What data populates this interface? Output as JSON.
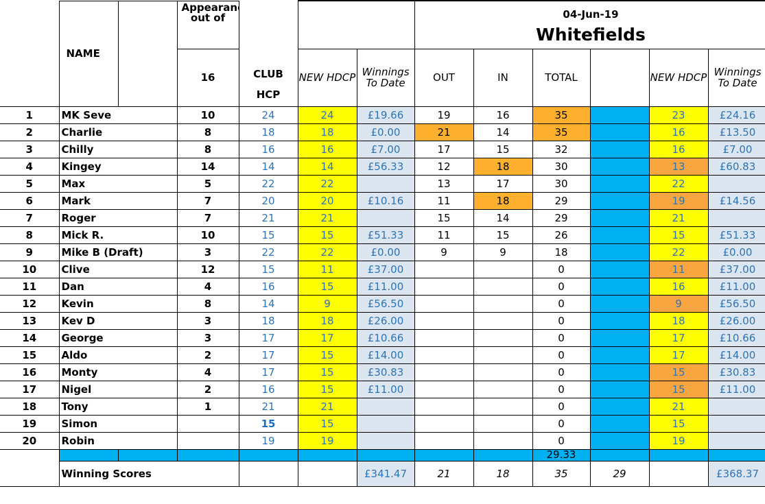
{
  "header": {
    "name_label": "NAME",
    "appearances_label": "Appearances out of",
    "appearances_total": "16",
    "club_hcp_line1": "CLUB",
    "club_hcp_line2": "HCP",
    "new_hdcp_label": "NEW HDCP",
    "winnings_label": "Winnings To Date",
    "out_label": "OUT",
    "in_label": "IN",
    "total_label": "TOTAL",
    "new_hdcp_label2": "NEW HDCP",
    "winnings_label2": "Winnings To Date",
    "event_date": "04-Jun-19",
    "event_course": "Whitefields"
  },
  "rows": [
    {
      "rank": "1",
      "name": "MK Seve",
      "apps": "10",
      "club_hcp": "24",
      "new_hdcp": "24",
      "winnings": "£19.66",
      "out": "19",
      "in": "16",
      "total": "35",
      "new_hdcp2": "23",
      "winnings2": "£24.16"
    },
    {
      "rank": "2",
      "name": "Charlie",
      "apps": "8",
      "club_hcp": "18",
      "new_hdcp": "18",
      "winnings": "£0.00",
      "out": "21",
      "in": "14",
      "total": "35",
      "new_hdcp2": "16",
      "winnings2": "£13.50"
    },
    {
      "rank": "3",
      "name": "Chilly",
      "apps": "8",
      "club_hcp": "16",
      "new_hdcp": "16",
      "winnings": "£7.00",
      "out": "17",
      "in": "15",
      "total": "32",
      "new_hdcp2": "16",
      "winnings2": "£7.00"
    },
    {
      "rank": "4",
      "name": "Kingey",
      "apps": "14",
      "club_hcp": "14",
      "new_hdcp": "14",
      "winnings": "£56.33",
      "out": "12",
      "in": "18",
      "total": "30",
      "new_hdcp2": "13",
      "winnings2": "£60.83"
    },
    {
      "rank": "5",
      "name": "Max",
      "apps": "5",
      "club_hcp": "22",
      "new_hdcp": "22",
      "winnings": "",
      "out": "13",
      "in": "17",
      "total": "30",
      "new_hdcp2": "22",
      "winnings2": ""
    },
    {
      "rank": "6",
      "name": "Mark",
      "apps": "7",
      "club_hcp": "20",
      "new_hdcp": "20",
      "winnings": "£10.16",
      "out": "11",
      "in": "18",
      "total": "29",
      "new_hdcp2": "19",
      "winnings2": "£14.56"
    },
    {
      "rank": "7",
      "name": "Roger",
      "apps": "7",
      "club_hcp": "21",
      "new_hdcp": "21",
      "winnings": "",
      "out": "15",
      "in": "14",
      "total": "29",
      "new_hdcp2": "21",
      "winnings2": ""
    },
    {
      "rank": "8",
      "name": "Mick R.",
      "apps": "10",
      "club_hcp": "15",
      "new_hdcp": "15",
      "winnings": "£51.33",
      "out": "11",
      "in": "15",
      "total": "26",
      "new_hdcp2": "15",
      "winnings2": "£51.33"
    },
    {
      "rank": "9",
      "name": "Mike B (Draft)",
      "apps": "3",
      "club_hcp": "22",
      "new_hdcp": "22",
      "winnings": "£0.00",
      "out": "9",
      "in": "9",
      "total": "18",
      "new_hdcp2": "22",
      "winnings2": "£0.00"
    },
    {
      "rank": "10",
      "name": "Clive",
      "apps": "12",
      "club_hcp": "15",
      "new_hdcp": "11",
      "winnings": "£37.00",
      "out": "",
      "in": "",
      "total": "0",
      "new_hdcp2": "11",
      "winnings2": "£37.00"
    },
    {
      "rank": "11",
      "name": "Dan",
      "apps": "4",
      "club_hcp": "16",
      "new_hdcp": "15",
      "winnings": "£11.00",
      "out": "",
      "in": "",
      "total": "0",
      "new_hdcp2": "16",
      "winnings2": "£11.00"
    },
    {
      "rank": "12",
      "name": "Kevin",
      "apps": "8",
      "club_hcp": "14",
      "new_hdcp": "9",
      "winnings": "£56.50",
      "out": "",
      "in": "",
      "total": "0",
      "new_hdcp2": "9",
      "winnings2": "£56.50"
    },
    {
      "rank": "13",
      "name": "Kev D",
      "apps": "3",
      "club_hcp": "18",
      "new_hdcp": "18",
      "winnings": "£26.00",
      "out": "",
      "in": "",
      "total": "0",
      "new_hdcp2": "18",
      "winnings2": "£26.00"
    },
    {
      "rank": "14",
      "name": "George",
      "apps": "3",
      "club_hcp": "17",
      "new_hdcp": "17",
      "winnings": "£10.66",
      "out": "",
      "in": "",
      "total": "0",
      "new_hdcp2": "17",
      "winnings2": "£10.66"
    },
    {
      "rank": "15",
      "name": "Aldo",
      "apps": "2",
      "club_hcp": "17",
      "new_hdcp": "15",
      "winnings": "£14.00",
      "out": "",
      "in": "",
      "total": "0",
      "new_hdcp2": "17",
      "winnings2": "£14.00"
    },
    {
      "rank": "16",
      "name": "Monty",
      "apps": "4",
      "club_hcp": "17",
      "new_hdcp": "15",
      "winnings": "£30.83",
      "out": "",
      "in": "",
      "total": "0",
      "new_hdcp2": "15",
      "winnings2": "£30.83"
    },
    {
      "rank": "17",
      "name": "Nigel",
      "apps": "2",
      "club_hcp": "16",
      "new_hdcp": "15",
      "winnings": "£11.00",
      "out": "",
      "in": "",
      "total": "0",
      "new_hdcp2": "15",
      "winnings2": "£11.00"
    },
    {
      "rank": "18",
      "name": "Tony",
      "apps": "1",
      "club_hcp": "21",
      "new_hdcp": "21",
      "winnings": "",
      "out": "",
      "in": "",
      "total": "0",
      "new_hdcp2": "21",
      "winnings2": ""
    },
    {
      "rank": "19",
      "name": "Simon",
      "apps": "",
      "club_hcp": "15",
      "new_hdcp": "15",
      "winnings": "",
      "out": "",
      "in": "",
      "total": "0",
      "new_hdcp2": "15",
      "winnings2": ""
    },
    {
      "rank": "20",
      "name": "Robin",
      "apps": "",
      "club_hcp": "19",
      "new_hdcp": "19",
      "winnings": "",
      "out": "",
      "in": "",
      "total": "0",
      "new_hdcp2": "19",
      "winnings2": ""
    }
  ],
  "summary": {
    "average_total": "29.33",
    "label": "Winning Scores",
    "winnings_sum": "£341.47",
    "out_best": "21",
    "in_best": "18",
    "total_best": "35",
    "extra": "29",
    "winnings2_sum": "£368.37"
  },
  "colors": {
    "new_hdcp_fill": "#ffff00",
    "winnings_fill": "#dce6f1",
    "best_score_fill": "#ffb02e",
    "hdcp_cut_fill": "#f9a640",
    "separator_fill": "#00b0f0",
    "event_header_text": "#1a6fc4",
    "club_hcp_text": "#2e74b5"
  }
}
